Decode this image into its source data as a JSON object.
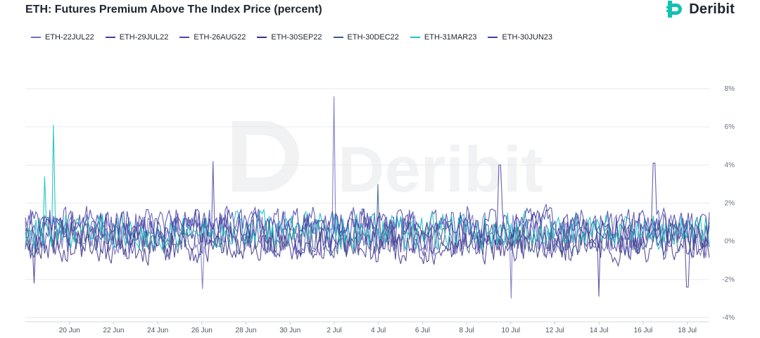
{
  "header": {
    "title": "ETH: Futures Premium Above The Index Price (percent)",
    "brand": "Deribit"
  },
  "colors": {
    "ETH-22JUL22": "#6f6fc4",
    "ETH-29JUL22": "#4a3f96",
    "ETH-26AUG22": "#4b45a8",
    "ETH-30SEP22": "#3a2f8a",
    "ETH-30DEC22": "#3c5a8a",
    "ETH-31MAR23": "#1fc3c3",
    "ETH-30JUN23": "#3d3fa8"
  },
  "chart_data": {
    "type": "line",
    "title": "ETH: Futures Premium Above The Index Price (percent)",
    "xlabel": "",
    "ylabel": "",
    "ylim": [
      -4,
      8
    ],
    "y_ticks": [
      -4,
      -2,
      0,
      2,
      4,
      6,
      8
    ],
    "y_tick_labels": [
      "-4%",
      "-2%",
      "0%",
      "2%",
      "4%",
      "6%",
      "8%"
    ],
    "x_range": [
      "2022-06-18",
      "2022-07-19"
    ],
    "x_tick_labels": [
      "20 Jun",
      "22 Jun",
      "24 Jun",
      "26 Jun",
      "28 Jun",
      "30 Jun",
      "2 Jul",
      "4 Jul",
      "6 Jul",
      "8 Jul",
      "10 Jul",
      "12 Jul",
      "14 Jul",
      "16 Jul",
      "18 Jul"
    ],
    "grid": true,
    "legend": "top-left",
    "series": [
      {
        "name": "ETH-22JUL22",
        "base": 0.3,
        "amp": 1.2,
        "spikes": [
          [
            14,
            7.6
          ],
          [
            22,
            -3.0
          ],
          [
            8,
            -2.5
          ]
        ]
      },
      {
        "name": "ETH-29JUL22",
        "base": 0.4,
        "amp": 1.1,
        "spikes": [
          [
            26,
            -2.9
          ],
          [
            30,
            -2.4
          ]
        ]
      },
      {
        "name": "ETH-26AUG22",
        "base": 0.6,
        "amp": 1.3,
        "spikes": [
          [
            8.5,
            4.2
          ],
          [
            28.5,
            4.1
          ],
          [
            21.5,
            4.0
          ]
        ]
      },
      {
        "name": "ETH-30SEP22",
        "base": -0.3,
        "amp": 0.9,
        "spikes": [
          [
            0.4,
            -2.2
          ]
        ]
      },
      {
        "name": "ETH-30DEC22",
        "base": 0.2,
        "amp": 0.9,
        "spikes": [
          [
            16,
            3.0
          ]
        ]
      },
      {
        "name": "ETH-31MAR23",
        "base": 0.6,
        "amp": 1.0,
        "spikes": [
          [
            1.3,
            6.1
          ],
          [
            0.9,
            3.4
          ]
        ]
      },
      {
        "name": "ETH-30JUN23",
        "base": 0.9,
        "amp": 0.8,
        "spikes": []
      }
    ]
  }
}
